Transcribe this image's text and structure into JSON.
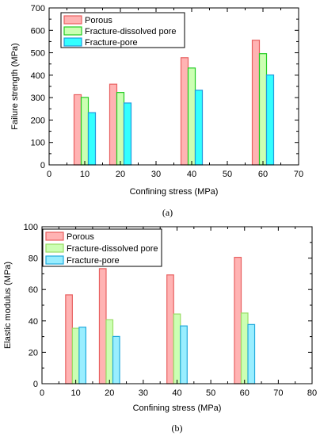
{
  "chart_data": [
    {
      "type": "bar",
      "panel_label": "(a)",
      "xlabel": "Confining stress (MPa)",
      "ylabel": "Failure strength (MPa)",
      "xlim": [
        0,
        70
      ],
      "ylim": [
        0,
        700
      ],
      "xticks": [
        0,
        10,
        20,
        30,
        40,
        50,
        60,
        70
      ],
      "yticks": [
        0,
        100,
        200,
        300,
        400,
        500,
        600,
        700
      ],
      "grid": false,
      "legend_position": "top-left",
      "x": [
        10,
        20,
        40,
        60
      ],
      "bar_width": 2,
      "series": [
        {
          "name": "Porous",
          "values": [
            313,
            360,
            478,
            556
          ],
          "fill": "#ffb3b3",
          "stroke": "#e86060"
        },
        {
          "name": "Fracture-dissolved pore",
          "values": [
            301,
            323,
            432,
            496
          ],
          "fill": "#ccffb3",
          "stroke": "#22cc22"
        },
        {
          "name": "Fracture-pore",
          "values": [
            233,
            276,
            333,
            401
          ],
          "fill": "#33ffff",
          "stroke": "#2299dd"
        }
      ]
    },
    {
      "type": "bar",
      "panel_label": "(b)",
      "xlabel": "Confining stress (MPa)",
      "ylabel": "Elastic modulus (MPa)",
      "xlim": [
        0,
        80
      ],
      "ylim": [
        0,
        100
      ],
      "xticks": [
        0,
        10,
        20,
        30,
        40,
        50,
        60,
        70,
        80
      ],
      "yticks": [
        0,
        20,
        40,
        60,
        80,
        100
      ],
      "grid": false,
      "legend_position": "top-left",
      "x": [
        10,
        20,
        40,
        60
      ],
      "bar_width": 2,
      "series": [
        {
          "name": "Porous",
          "values": [
            56.6,
            73.3,
            69.3,
            80.5
          ],
          "fill": "#ffb3b3",
          "stroke": "#e86060"
        },
        {
          "name": "Fracture-dissolved pore",
          "values": [
            35.3,
            40.7,
            44.4,
            45.0
          ],
          "fill": "#ccffb3",
          "stroke": "#99dd66"
        },
        {
          "name": "Fracture-pore",
          "values": [
            36.0,
            30.1,
            36.8,
            37.7
          ],
          "fill": "#99eeff",
          "stroke": "#22aadd"
        }
      ]
    }
  ]
}
